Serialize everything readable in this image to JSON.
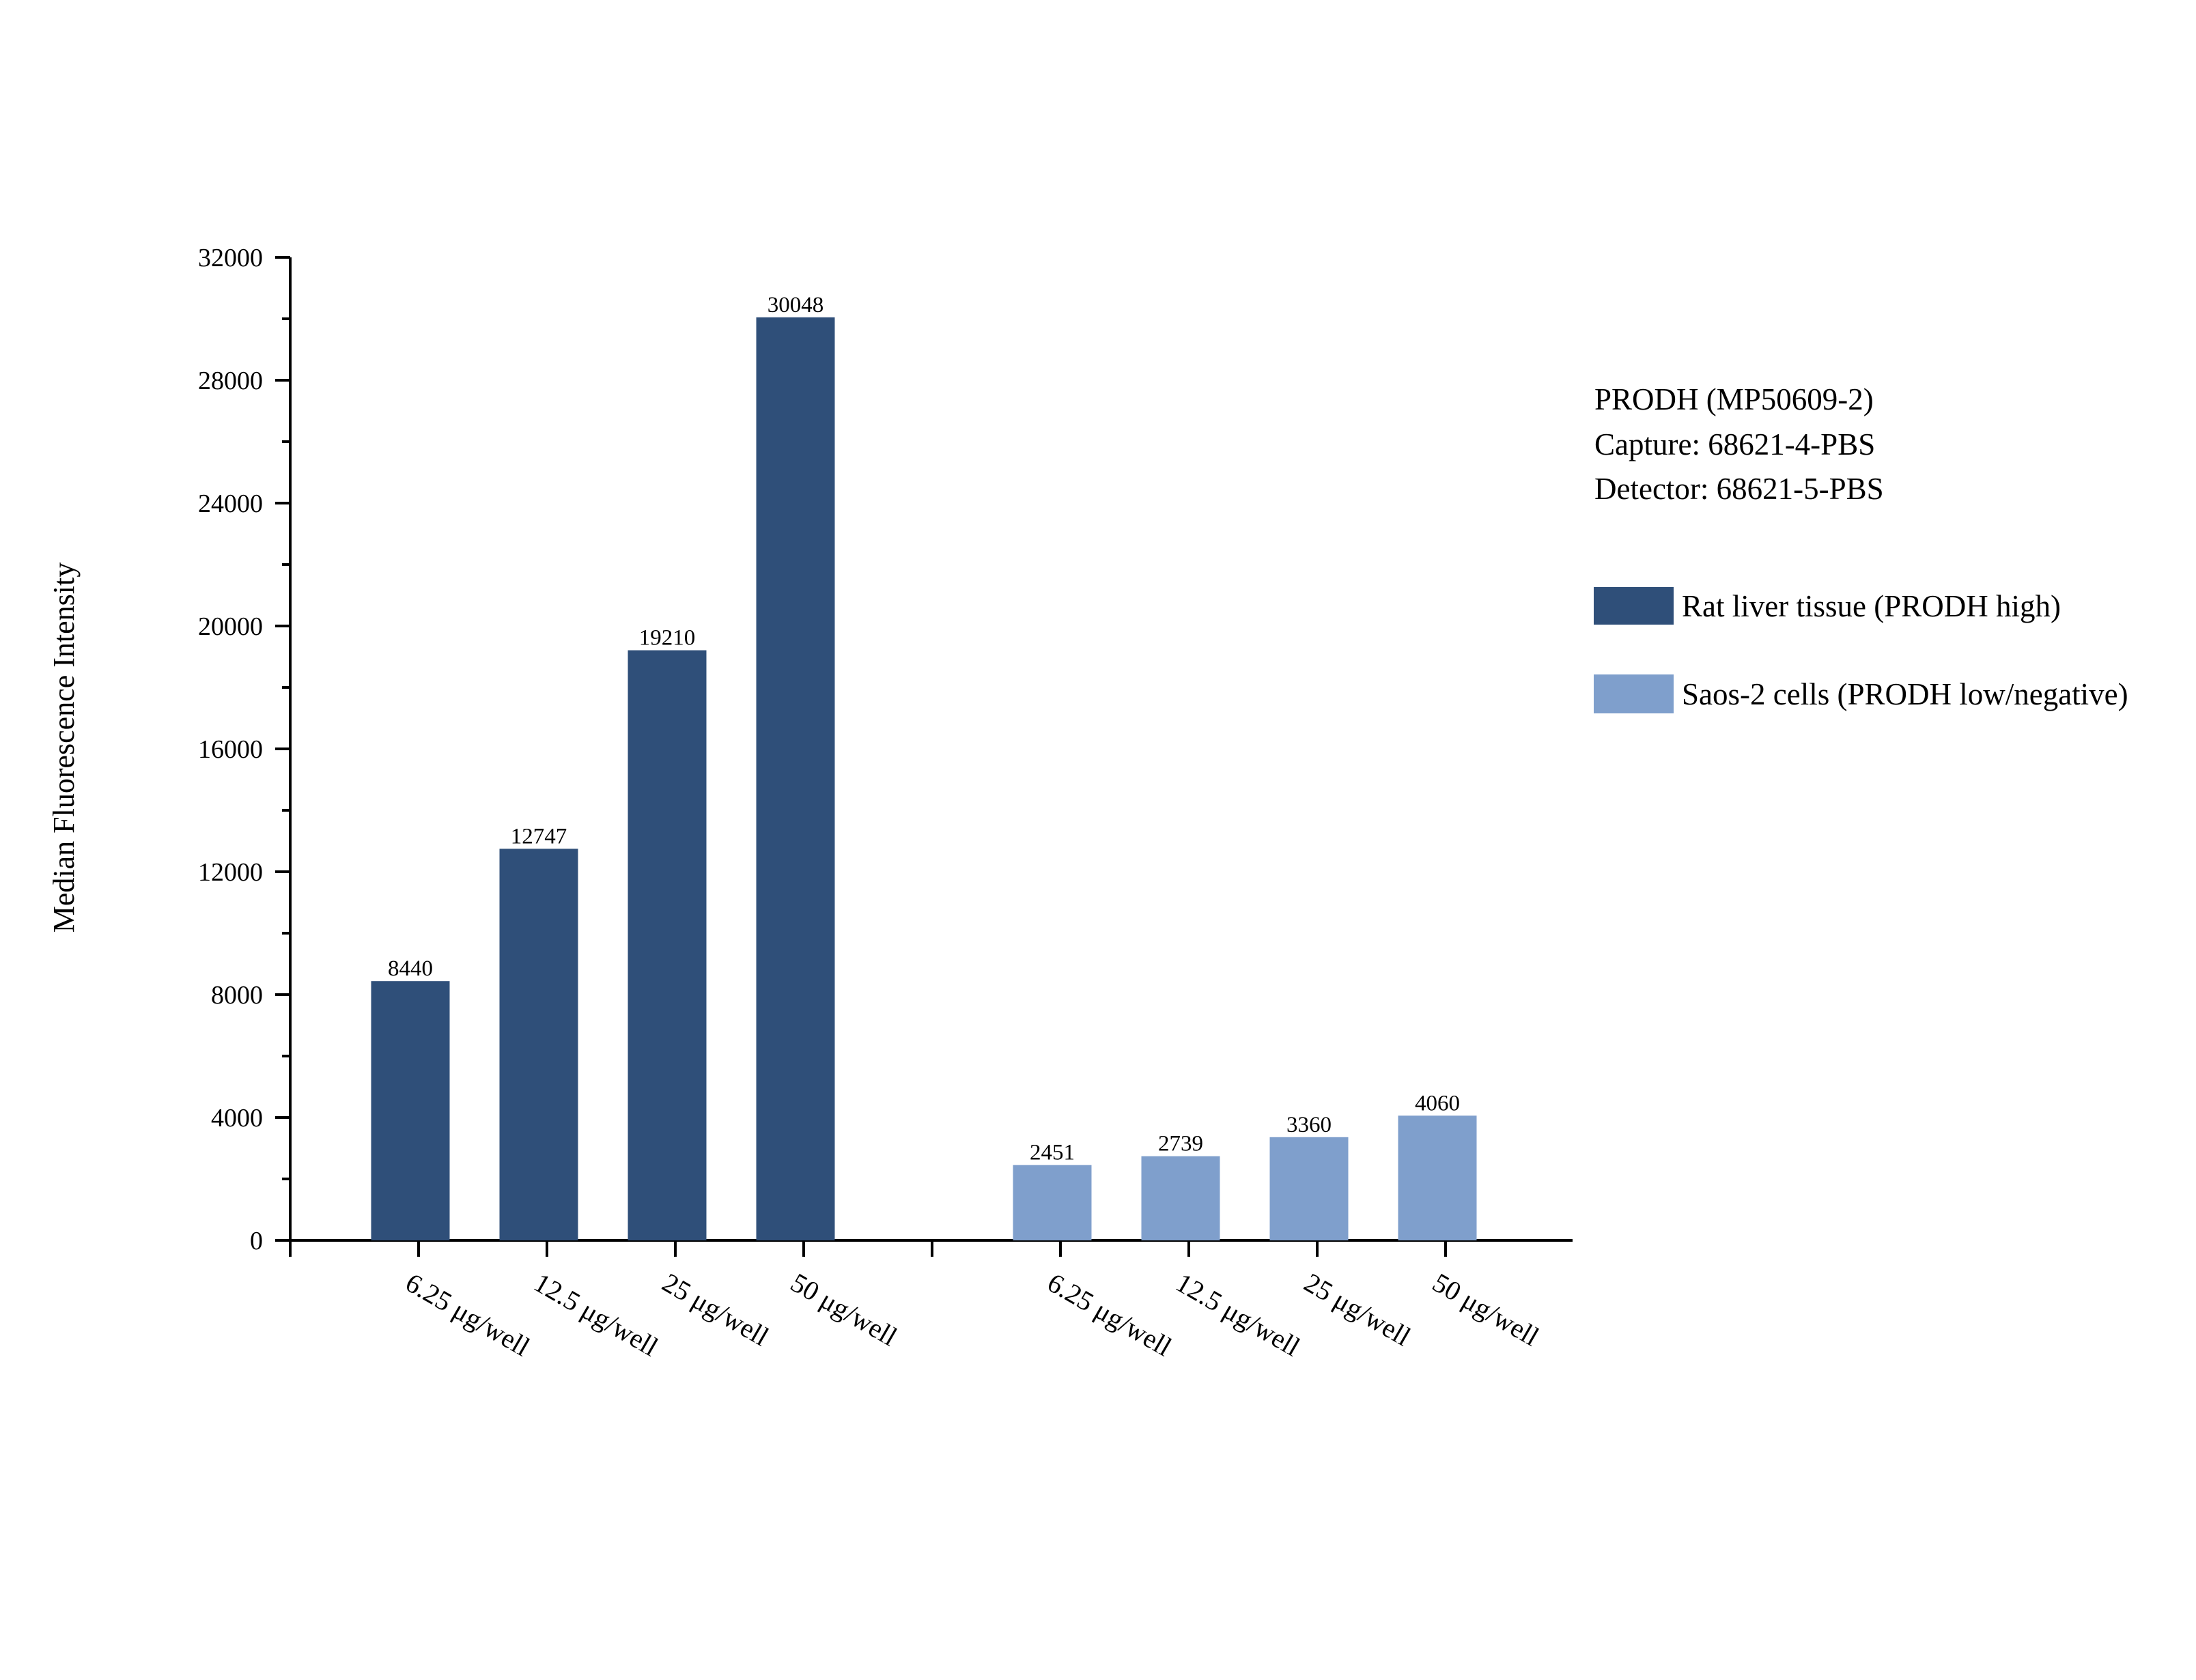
{
  "chart_data": {
    "type": "bar",
    "title": "",
    "xlabel": "",
    "ylabel": "Median Fluorescence Intensity",
    "ylim": [
      0,
      32000
    ],
    "yticks": [
      0,
      4000,
      8000,
      12000,
      16000,
      20000,
      24000,
      28000,
      32000
    ],
    "grid": false,
    "legend_position": "right",
    "info_lines": [
      "PRODH (MP50609-2)",
      "Capture: 68621-4-PBS",
      "Detector: 68621-5-PBS"
    ],
    "series": [
      {
        "name": "Rat liver tissue (PRODH high)",
        "color": "#2f4f79",
        "categories": [
          "6.25 μg/well",
          "12.5 μg/well",
          "25 μg/well",
          "50 μg/well"
        ],
        "values": [
          8440,
          12747,
          19210,
          30048
        ]
      },
      {
        "name": "Saos-2 cells (PRODH low/negative)",
        "color": "#7f9fcc",
        "categories": [
          "6.25 μg/well",
          "12.5 μg/well",
          "25 μg/well",
          "50 μg/well"
        ],
        "values": [
          2451,
          2739,
          3360,
          4060
        ]
      }
    ]
  }
}
